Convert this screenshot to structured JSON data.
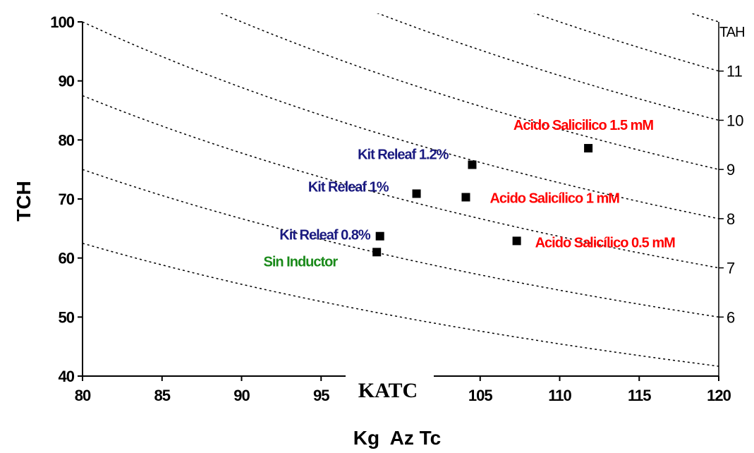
{
  "chart_data": {
    "type": "scatter",
    "xlabel": "Kg  Az Tc",
    "ylabel": "TCH",
    "right_axis_label": "TAH",
    "overlay_label": "KATC",
    "xlim": [
      80,
      120
    ],
    "ylim": [
      40,
      100
    ],
    "x_ticks": [
      "80",
      "85",
      "90",
      "95",
      "105",
      "110",
      "115",
      "120"
    ],
    "y_ticks": [
      "40",
      "50",
      "60",
      "70",
      "80",
      "90",
      "100"
    ],
    "right_ticks": [
      {
        "label": "11",
        "tah": 11
      },
      {
        "label": "10",
        "tah": 10
      },
      {
        "label": "9",
        "tah": 9
      },
      {
        "label": "8",
        "tah": 8
      },
      {
        "label": "7",
        "tah": 7
      },
      {
        "label": "6",
        "tah": 6
      }
    ],
    "isolines_tah": [
      5,
      6,
      7,
      8,
      9,
      10,
      11,
      12
    ],
    "points": [
      {
        "label": "Sin Inductor",
        "x": 98.5,
        "y": 61,
        "color": "#1a8a1a"
      },
      {
        "label": "Kit Releaf 0.8%",
        "x": 98.7,
        "y": 63.7,
        "color": "#1a1a80"
      },
      {
        "label": "Kit Releaf 1%",
        "x": 101.0,
        "y": 70.9,
        "color": "#1a1a80"
      },
      {
        "label": "Kit Releaf 1.2%",
        "x": 104.5,
        "y": 75.8,
        "color": "#1a1a80"
      },
      {
        "label": "Acido Salicílico 1 mM",
        "x": 104.1,
        "y": 70.3,
        "color": "#ff0000"
      },
      {
        "label": "Acido Salicílico 0.5 mM",
        "x": 107.3,
        "y": 62.9,
        "color": "#ff0000"
      },
      {
        "label": "Acido Salicilico 1.5 mM",
        "x": 111.8,
        "y": 78.6,
        "color": "#ff0000"
      }
    ],
    "grid": false
  }
}
